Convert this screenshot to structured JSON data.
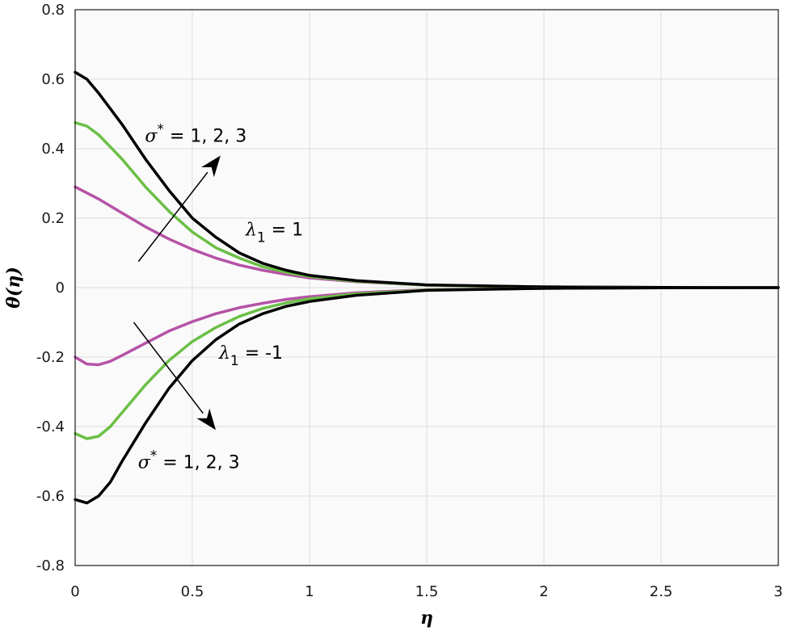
{
  "chart_data": {
    "type": "line",
    "xlabel": "η",
    "ylabel": "θ(η)",
    "xlim": [
      0,
      3
    ],
    "ylim": [
      -0.8,
      0.8
    ],
    "xticks": [
      "0",
      "0.5",
      "1",
      "1.5",
      "2",
      "2.5",
      "3"
    ],
    "xtick_values": [
      0,
      0.5,
      1,
      1.5,
      2,
      2.5,
      3
    ],
    "yticks": [
      "-0.8",
      "-0.6",
      "-0.4",
      "-0.2",
      "0",
      "0.2",
      "0.4",
      "0.6",
      "0.8"
    ],
    "ytick_values": [
      -0.8,
      -0.6,
      -0.4,
      -0.2,
      0,
      0.2,
      0.4,
      0.6,
      0.8
    ],
    "grid": true,
    "background": "#fafafa",
    "series": [
      {
        "color": "#b553a6",
        "x": [
          0,
          0.1,
          0.2,
          0.3,
          0.4,
          0.5,
          0.6,
          0.7,
          0.8,
          0.9,
          1.0,
          1.2,
          1.5,
          2.0,
          2.5,
          3.0
        ],
        "y": [
          0.29,
          0.255,
          0.215,
          0.175,
          0.14,
          0.11,
          0.085,
          0.065,
          0.05,
          0.038,
          0.028,
          0.017,
          0.007,
          0.002,
          0.0005,
          0
        ]
      },
      {
        "color": "#6bbf46",
        "x": [
          0,
          0.05,
          0.1,
          0.2,
          0.3,
          0.4,
          0.5,
          0.6,
          0.7,
          0.8,
          0.9,
          1.0,
          1.2,
          1.5,
          2.0,
          2.5,
          3.0
        ],
        "y": [
          0.475,
          0.465,
          0.44,
          0.37,
          0.29,
          0.22,
          0.16,
          0.115,
          0.085,
          0.06,
          0.044,
          0.032,
          0.018,
          0.007,
          0.002,
          0.0005,
          0
        ]
      },
      {
        "color": "#000000",
        "x": [
          0,
          0.05,
          0.1,
          0.2,
          0.3,
          0.4,
          0.5,
          0.6,
          0.7,
          0.8,
          0.9,
          1.0,
          1.2,
          1.5,
          2.0,
          2.5,
          3.0
        ],
        "y": [
          0.62,
          0.6,
          0.56,
          0.47,
          0.37,
          0.28,
          0.2,
          0.145,
          0.1,
          0.07,
          0.05,
          0.035,
          0.02,
          0.008,
          0.002,
          0.0005,
          0
        ]
      },
      {
        "color": "#b553a6",
        "x": [
          0,
          0.05,
          0.1,
          0.15,
          0.2,
          0.3,
          0.4,
          0.5,
          0.6,
          0.7,
          0.8,
          0.9,
          1.0,
          1.2,
          1.5,
          2.0,
          2.5,
          3.0
        ],
        "y": [
          -0.2,
          -0.22,
          -0.222,
          -0.212,
          -0.195,
          -0.16,
          -0.125,
          -0.098,
          -0.075,
          -0.058,
          -0.045,
          -0.034,
          -0.026,
          -0.015,
          -0.006,
          -0.002,
          -0.0005,
          0
        ]
      },
      {
        "color": "#6bbf46",
        "x": [
          0,
          0.05,
          0.1,
          0.15,
          0.2,
          0.3,
          0.4,
          0.5,
          0.6,
          0.7,
          0.8,
          0.9,
          1.0,
          1.2,
          1.5,
          2.0,
          2.5,
          3.0
        ],
        "y": [
          -0.42,
          -0.435,
          -0.428,
          -0.4,
          -0.36,
          -0.28,
          -0.21,
          -0.155,
          -0.115,
          -0.083,
          -0.06,
          -0.044,
          -0.032,
          -0.018,
          -0.007,
          -0.002,
          -0.0005,
          0
        ]
      },
      {
        "color": "#000000",
        "x": [
          0,
          0.05,
          0.1,
          0.15,
          0.2,
          0.3,
          0.4,
          0.5,
          0.6,
          0.7,
          0.8,
          0.9,
          1.0,
          1.2,
          1.5,
          2.0,
          2.5,
          3.0
        ],
        "y": [
          -0.61,
          -0.62,
          -0.6,
          -0.56,
          -0.5,
          -0.39,
          -0.29,
          -0.21,
          -0.15,
          -0.105,
          -0.075,
          -0.054,
          -0.04,
          -0.022,
          -0.008,
          -0.002,
          -0.0005,
          0
        ]
      }
    ],
    "annotations": {
      "top_sigma": {
        "symbol": "σ",
        "sup": "*",
        "text": " = 1, 2, 3",
        "x": 0.515,
        "y": 0.42
      },
      "top_lambda": {
        "symbol": "λ",
        "sub": "1",
        "text": " = 1",
        "x": 0.85,
        "y": 0.15
      },
      "bottom_lambda": {
        "symbol": "λ",
        "sub": "1",
        "text": " = -1",
        "x": 0.75,
        "y": -0.205
      },
      "bottom_sigma": {
        "symbol": "σ",
        "sup": "*",
        "text": " = 1, 2, 3",
        "x": 0.485,
        "y": -0.52
      },
      "arrow_up": {
        "from": [
          0.27,
          0.075
        ],
        "to": [
          0.62,
          0.38
        ]
      },
      "arrow_down": {
        "from": [
          0.25,
          -0.1
        ],
        "to": [
          0.6,
          -0.41
        ]
      }
    }
  }
}
